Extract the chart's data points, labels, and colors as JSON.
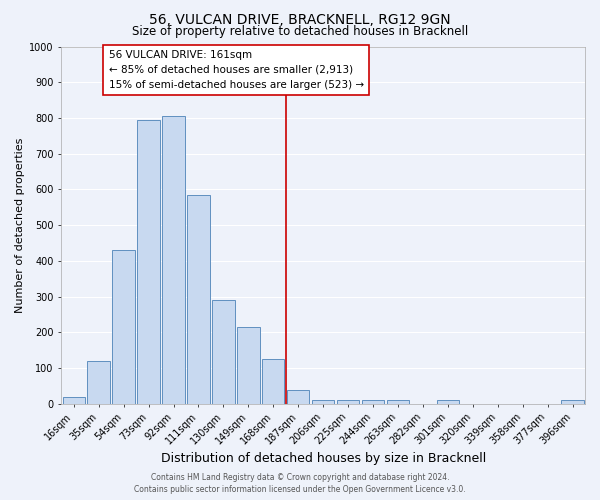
{
  "title": "56, VULCAN DRIVE, BRACKNELL, RG12 9GN",
  "subtitle": "Size of property relative to detached houses in Bracknell",
  "xlabel": "Distribution of detached houses by size in Bracknell",
  "ylabel": "Number of detached properties",
  "bar_labels": [
    "16sqm",
    "35sqm",
    "54sqm",
    "73sqm",
    "92sqm",
    "111sqm",
    "130sqm",
    "149sqm",
    "168sqm",
    "187sqm",
    "206sqm",
    "225sqm",
    "244sqm",
    "263sqm",
    "282sqm",
    "301sqm",
    "320sqm",
    "339sqm",
    "358sqm",
    "377sqm",
    "396sqm"
  ],
  "bar_values": [
    20,
    120,
    430,
    795,
    805,
    585,
    290,
    215,
    125,
    40,
    12,
    10,
    10,
    10,
    0,
    10,
    0,
    0,
    0,
    0,
    10
  ],
  "bar_color": "#c8d9f0",
  "bar_edge_color": "#6090c0",
  "vline_x": 8.5,
  "vline_color": "#cc0000",
  "ylim": [
    0,
    1000
  ],
  "yticks": [
    0,
    100,
    200,
    300,
    400,
    500,
    600,
    700,
    800,
    900,
    1000
  ],
  "annotation_text_line1": "56 VULCAN DRIVE: 161sqm",
  "annotation_text_line2": "← 85% of detached houses are smaller (2,913)",
  "annotation_text_line3": "15% of semi-detached houses are larger (523) →",
  "annotation_box_color": "#ffffff",
  "annotation_box_edge_color": "#cc0000",
  "footer_line1": "Contains HM Land Registry data © Crown copyright and database right 2024.",
  "footer_line2": "Contains public sector information licensed under the Open Government Licence v3.0.",
  "background_color": "#eef2fa",
  "grid_color": "#ffffff",
  "title_fontsize": 10,
  "subtitle_fontsize": 8.5,
  "xlabel_fontsize": 9,
  "ylabel_fontsize": 8,
  "tick_fontsize": 7,
  "annotation_fontsize": 7.5,
  "footer_fontsize": 5.5
}
